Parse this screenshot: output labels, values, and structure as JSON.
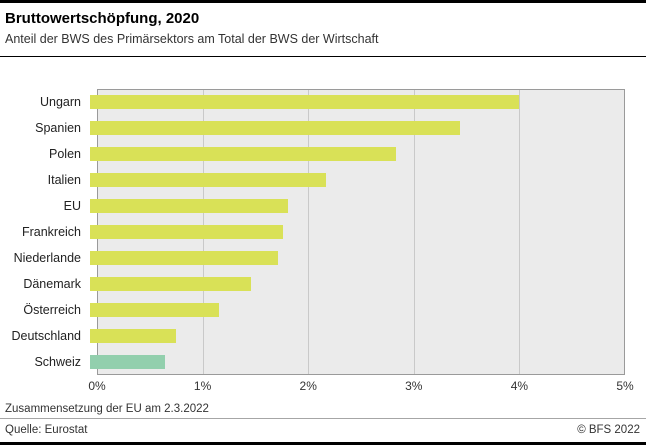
{
  "header": {
    "title": "Bruttowertschöpfung, 2020",
    "subtitle": "Anteil der BWS des Primärsektors am Total der BWS der Wirtschaft"
  },
  "chart_data": {
    "type": "bar",
    "orientation": "horizontal",
    "categories": [
      "Ungarn",
      "Spanien",
      "Polen",
      "Italien",
      "EU",
      "Frankreich",
      "Niederlande",
      "Dänemark",
      "Österreich",
      "Deutschland",
      "Schweiz"
    ],
    "values": [
      4.0,
      3.45,
      2.85,
      2.2,
      1.85,
      1.8,
      1.75,
      1.5,
      1.2,
      0.8,
      0.7
    ],
    "xlim": [
      0,
      5
    ],
    "x_ticks": [
      "0%",
      "1%",
      "2%",
      "3%",
      "4%",
      "5%"
    ],
    "grid": true,
    "bar_color": "#d9e157",
    "highlight_category": "Schweiz",
    "highlight_color": "#92cfad",
    "plot_background": "#ebebeb"
  },
  "footnote": "Zusammensetzung der EU am 2.3.2022",
  "footer": {
    "source": "Quelle: Eurostat",
    "copyright": "© BFS 2022"
  }
}
